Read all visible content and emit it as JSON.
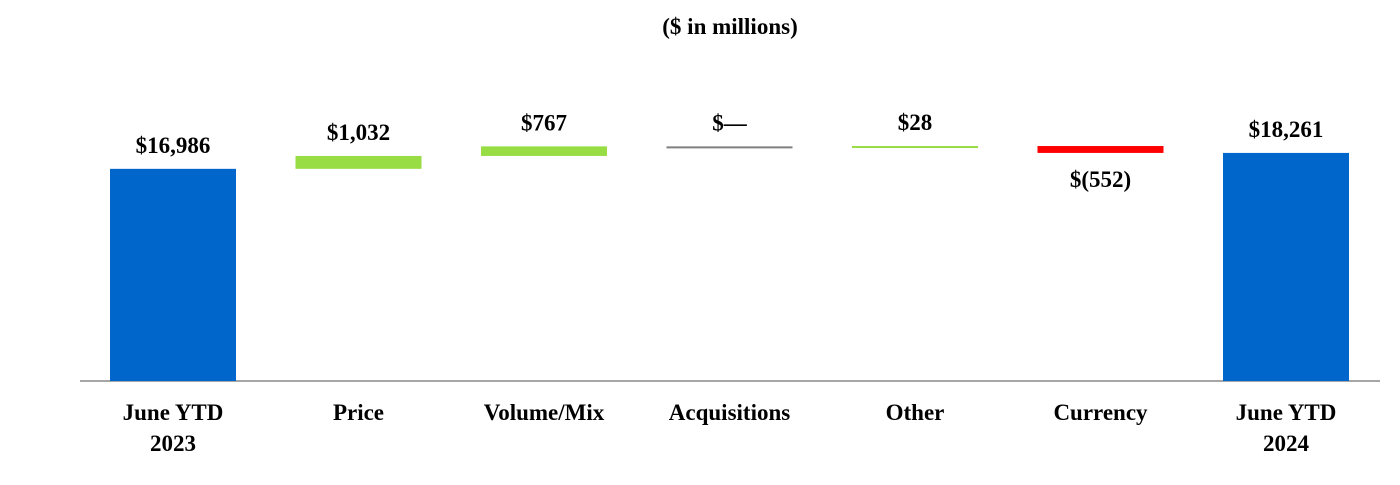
{
  "chart_data": {
    "type": "bar",
    "subtitle": "($ in millions)",
    "categories": [
      "June YTD\n2023",
      "Price",
      "Volume/Mix",
      "Acquisitions",
      "Other",
      "Currency",
      "June YTD\n2024"
    ],
    "series": [
      {
        "values": [
          16986,
          1032,
          767,
          0,
          28,
          -552,
          18261
        ],
        "value_labels": [
          "$16,986",
          "$1,032",
          "$767",
          "$—",
          "$28",
          "$(552)",
          "$18,261"
        ],
        "kinds": [
          "total",
          "delta",
          "delta",
          "delta",
          "delta",
          "delta",
          "total"
        ]
      }
    ],
    "colors": {
      "total": "#0066cc",
      "increase": "#99dd44",
      "decrease": "#ff0000",
      "zero": "#808080",
      "axis": "#a6a6a6"
    },
    "grid": false,
    "legend": "none"
  }
}
